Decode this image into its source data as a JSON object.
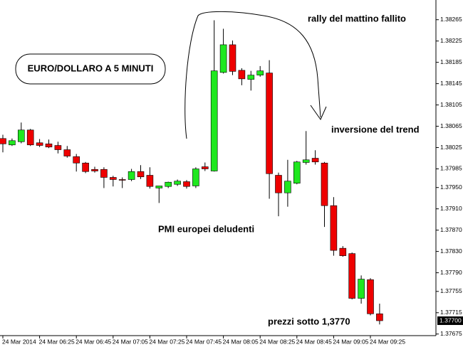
{
  "chart_data": {
    "type": "candlestick",
    "up_color": "#1fe81f",
    "down_color": "#ee0000",
    "categories": [
      "24 Mar 2014",
      null,
      null,
      null,
      "24 Mar 06:25",
      null,
      null,
      null,
      "24 Mar 06:45",
      null,
      null,
      null,
      "24 Mar 07:05",
      null,
      null,
      null,
      "24 Mar 07:25",
      null,
      null,
      null,
      "24 Mar 07:45",
      null,
      null,
      null,
      "24 Mar 08:05",
      null,
      null,
      null,
      "24 Mar 08:25",
      null,
      null,
      null,
      "24 Mar 08:45",
      null,
      null,
      null,
      "24 Mar 09:05",
      null,
      null,
      null,
      "24 Mar 09:25",
      null
    ],
    "open": [
      1.38042,
      1.3803,
      1.38036,
      1.38058,
      1.38034,
      1.38032,
      1.38029,
      1.38021,
      1.38008,
      1.37996,
      1.37984,
      1.37984,
      1.37969,
      1.37965,
      1.37965,
      1.3798,
      1.37973,
      1.37949,
      1.37952,
      1.37956,
      1.37961,
      1.37953,
      1.37989,
      1.37981,
      1.38166,
      1.38218,
      1.3817,
      1.38153,
      1.38161,
      1.38165,
      1.37973,
      1.3794,
      1.37958,
      1.37997,
      1.38005,
      1.37996,
      1.37916,
      1.37836,
      1.37826,
      1.37742,
      1.37777,
      1.37713
    ],
    "high": [
      1.38049,
      1.38042,
      1.38072,
      1.3806,
      1.38041,
      1.3804,
      1.38036,
      1.38028,
      1.38013,
      1.37998,
      1.37989,
      1.37988,
      1.37972,
      1.37969,
      1.37985,
      1.37992,
      1.37988,
      1.37953,
      1.37961,
      1.37965,
      1.37964,
      1.37988,
      1.37997,
      1.38264,
      1.38248,
      1.38226,
      1.38174,
      1.38169,
      1.38178,
      1.38189,
      1.37978,
      1.38002,
      1.38,
      1.38056,
      1.3802,
      1.37998,
      1.37932,
      1.3784,
      1.37828,
      1.37785,
      1.3778,
      1.37732
    ],
    "low": [
      1.38016,
      1.38028,
      1.38033,
      1.38028,
      1.38026,
      1.38024,
      1.38014,
      1.38006,
      1.3798,
      1.37977,
      1.37978,
      1.37949,
      1.37952,
      1.37949,
      1.37962,
      1.37966,
      1.37948,
      1.37921,
      1.37949,
      1.37953,
      1.37948,
      1.37949,
      1.37981,
      1.3798,
      1.38164,
      1.38161,
      1.38142,
      1.38132,
      1.38158,
      1.37929,
      1.37896,
      1.37914,
      1.37956,
      1.37993,
      1.37993,
      1.37876,
      1.37822,
      1.3782,
      1.3774,
      1.37732,
      1.3771,
      1.37693
    ],
    "close": [
      1.38032,
      1.38038,
      1.38058,
      1.3803,
      1.38029,
      1.38026,
      1.38021,
      1.38009,
      1.37996,
      1.3798,
      1.37981,
      1.37969,
      1.37965,
      1.37964,
      1.3798,
      1.3797,
      1.37952,
      1.37953,
      1.3796,
      1.37962,
      1.37952,
      1.37985,
      1.37985,
      1.38169,
      1.38218,
      1.38168,
      1.38154,
      1.38161,
      1.38169,
      1.37976,
      1.3794,
      1.37962,
      1.37998,
      1.38002,
      1.37998,
      1.37916,
      1.37832,
      1.37822,
      1.37742,
      1.37778,
      1.37713,
      1.377
    ],
    "ylim": [
      1.37672,
      1.38302
    ],
    "yticks": [
      1.38265,
      1.38225,
      1.38185,
      1.38145,
      1.38105,
      1.38065,
      1.38025,
      1.37985,
      {
        "value": 1.3795,
        "label": "1.37950"
      },
      {
        "value": 1.3791,
        "label": "1.37910"
      },
      {
        "value": 1.3787,
        "label": "1.37870"
      },
      {
        "value": 1.3783,
        "label": "1.37830"
      },
      {
        "value": 1.3779,
        "label": "1.37790"
      },
      1.37755,
      1.37715,
      1.37675
    ],
    "last_price": {
      "value": 1.377,
      "label": "1.37700"
    },
    "title": "EURO/DOLLARO A 5 MINUTI",
    "annotations": [
      "rally del mattino fallito",
      "inversione del trend",
      "PMI europei deludenti",
      "prezzi sotto 1,3770"
    ]
  }
}
